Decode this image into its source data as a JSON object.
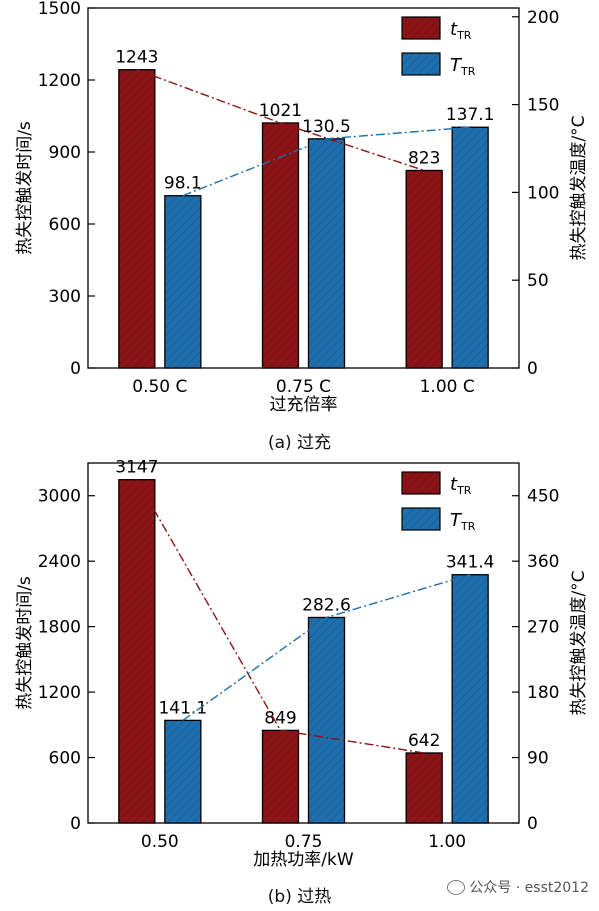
{
  "chart_data": [
    {
      "type": "bar",
      "caption": "(a) 过充",
      "categories": [
        "0.50 C",
        "0.75 C",
        "1.00 C"
      ],
      "xlabel": "过充倍率",
      "ylabel_left": "热失控触发时间/s",
      "ylabel_right": "热失控触发温度/°C",
      "ylim_left": [
        0,
        1500
      ],
      "yticks_left": [
        0,
        300,
        600,
        900,
        1200,
        1500
      ],
      "ylim_right": [
        0,
        205
      ],
      "yticks_right": [
        0,
        50,
        100,
        150,
        200
      ],
      "series": [
        {
          "name": "t_TR",
          "label_main": "t",
          "label_sub": "TR",
          "axis": "left",
          "color": "#8b1416",
          "values": [
            1243,
            1021,
            823
          ],
          "labels": [
            "1243",
            "1021",
            "823"
          ]
        },
        {
          "name": "T_TR",
          "label_main": "T",
          "label_sub": "TR",
          "axis": "right",
          "color": "#1f6fae",
          "values": [
            98.1,
            130.5,
            137.1
          ],
          "labels": [
            "98.1",
            "130.5",
            "137.1"
          ]
        }
      ],
      "legend": "top-right"
    },
    {
      "type": "bar",
      "caption": "(b) 过热",
      "categories": [
        "0.50",
        "0.75",
        "1.00"
      ],
      "xlabel": "加热功率/kW",
      "ylabel_left": "热失控触发时间/s",
      "ylabel_right": "热失控触发温度/°C",
      "ylim_left": [
        0,
        3300
      ],
      "yticks_left": [
        0,
        600,
        1200,
        1800,
        2400,
        3000
      ],
      "ylim_right": [
        0,
        495
      ],
      "yticks_right": [
        0,
        90,
        180,
        270,
        360,
        450
      ],
      "series": [
        {
          "name": "t_TR",
          "label_main": "t",
          "label_sub": "TR",
          "axis": "left",
          "color": "#8b1416",
          "values": [
            3147,
            849,
            642
          ],
          "labels": [
            "3147",
            "849",
            "642"
          ]
        },
        {
          "name": "T_TR",
          "label_main": "T",
          "label_sub": "TR",
          "axis": "right",
          "color": "#1f6fae",
          "values": [
            141.1,
            282.6,
            341.4
          ],
          "labels": [
            "141.1",
            "282.6",
            "341.4"
          ]
        }
      ],
      "legend": "top-right"
    }
  ],
  "watermark": "公众号 · esst2012"
}
